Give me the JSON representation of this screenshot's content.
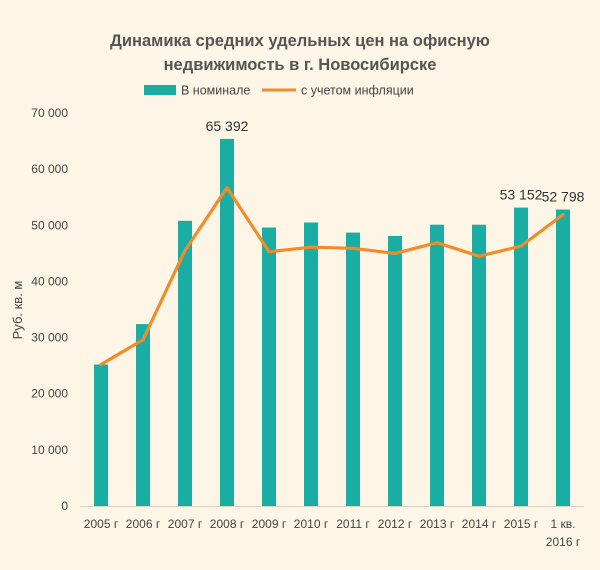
{
  "chart_data": {
    "type": "bar",
    "title_lines": [
      "Динамика средних удельных цен на офисную",
      "недвижимость в г. Новосибирске"
    ],
    "ylabel": "Руб. кв. м",
    "xlabel": "",
    "ylim": [
      0,
      70000
    ],
    "y_ticks": [
      "0",
      "10 000",
      "20 000",
      "30 000",
      "40 000",
      "50 000",
      "60 000",
      "70 000"
    ],
    "y_tick_values": [
      0,
      10000,
      20000,
      30000,
      40000,
      50000,
      60000,
      70000
    ],
    "categories": [
      [
        "2005 г"
      ],
      [
        "2006 г"
      ],
      [
        "2007 г"
      ],
      [
        "2008 г"
      ],
      [
        "2009 г"
      ],
      [
        "2010 г"
      ],
      [
        "2011 г"
      ],
      [
        "2012 г"
      ],
      [
        "2013 г"
      ],
      [
        "2014 г"
      ],
      [
        "2015 г"
      ],
      [
        "1 кв.",
        "2016 г"
      ]
    ],
    "grid": false,
    "legend_position": "top",
    "series": [
      {
        "name": "В номинале",
        "kind": "bar",
        "color": "#1aada3",
        "values": [
          25200,
          32400,
          50800,
          65392,
          49600,
          50500,
          48700,
          48100,
          50100,
          50100,
          53152,
          52798
        ]
      },
      {
        "name": "с учетом инфляции",
        "kind": "line",
        "color": "#f08c2a",
        "values": [
          25200,
          29600,
          45500,
          56700,
          45300,
          46100,
          45900,
          45000,
          46900,
          44500,
          46300,
          51900
        ]
      }
    ],
    "data_labels": [
      {
        "index": 3,
        "text": "65 392"
      },
      {
        "index": 10,
        "text": "53 152"
      },
      {
        "index": 11,
        "text": "52 798"
      }
    ]
  }
}
